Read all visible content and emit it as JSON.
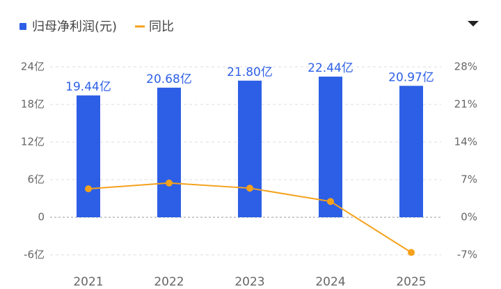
{
  "chart_data": {
    "type": "bar-line",
    "categories": [
      "2021",
      "2022",
      "2023",
      "2024",
      "2025"
    ],
    "series": [
      {
        "name": "归母净利润(元)",
        "type": "bar",
        "color": "#2d5fe6",
        "values": [
          19.44,
          20.68,
          21.8,
          22.44,
          20.97
        ],
        "value_labels": [
          "19.44亿",
          "20.68亿",
          "21.80亿",
          "22.44亿",
          "20.97亿"
        ]
      },
      {
        "name": "同比",
        "type": "line",
        "axis": "y2",
        "color": "#f5a11c",
        "values": [
          5.3,
          6.38,
          5.42,
          2.94,
          -6.55
        ]
      }
    ],
    "ylim": [
      -6,
      24
    ],
    "yticks": [
      {
        "value": -6,
        "label": "-6亿"
      },
      0,
      {
        "value": 6,
        "label": "6亿"
      },
      {
        "value": 12,
        "label": "12亿"
      },
      {
        "value": 18,
        "label": "18亿"
      },
      {
        "value": 24,
        "label": "24亿"
      }
    ],
    "y2lim": [
      -7,
      28
    ],
    "y2ticks": [
      {
        "value": -7,
        "label": "-7%"
      },
      {
        "value": 0,
        "label": "0%"
      },
      {
        "value": 7,
        "label": "7%"
      },
      {
        "value": 14,
        "label": "14%"
      },
      {
        "value": 21,
        "label": "21%"
      },
      {
        "value": 28,
        "label": "28%"
      }
    ],
    "grid": true,
    "legend": "top-left"
  }
}
